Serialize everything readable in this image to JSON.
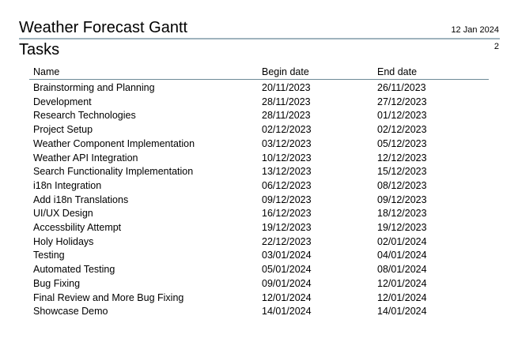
{
  "header": {
    "title": "Weather Forecast Gantt",
    "date": "12 Jan 2024"
  },
  "page": {
    "number": "2"
  },
  "section": {
    "title": "Tasks"
  },
  "table": {
    "columns": [
      "Name",
      "Begin date",
      "End date"
    ],
    "rows": [
      [
        "Brainstorming and Planning",
        "20/11/2023",
        "26/11/2023"
      ],
      [
        "Development",
        "28/11/2023",
        "27/12/2023"
      ],
      [
        "Research Technologies",
        "28/11/2023",
        "01/12/2023"
      ],
      [
        "Project Setup",
        "02/12/2023",
        "02/12/2023"
      ],
      [
        "Weather Component Implementation",
        "03/12/2023",
        "05/12/2023"
      ],
      [
        "Weather API Integration",
        "10/12/2023",
        "12/12/2023"
      ],
      [
        "Search Functionality Implementation",
        "13/12/2023",
        "15/12/2023"
      ],
      [
        "i18n Integration",
        "06/12/2023",
        "08/12/2023"
      ],
      [
        "Add i18n Translations",
        "09/12/2023",
        "09/12/2023"
      ],
      [
        "UI/UX Design",
        "16/12/2023",
        "18/12/2023"
      ],
      [
        "Accessbility Attempt",
        "19/12/2023",
        "19/12/2023"
      ],
      [
        "Holy Holidays",
        "22/12/2023",
        "02/01/2024"
      ],
      [
        "Testing",
        "03/01/2024",
        "04/01/2024"
      ],
      [
        "Automated Testing",
        "05/01/2024",
        "08/01/2024"
      ],
      [
        "Bug Fixing",
        "09/01/2024",
        "12/01/2024"
      ],
      [
        "Final Review and More Bug Fixing",
        "12/01/2024",
        "12/01/2024"
      ],
      [
        "Showcase Demo",
        "14/01/2024",
        "14/01/2024"
      ]
    ]
  }
}
